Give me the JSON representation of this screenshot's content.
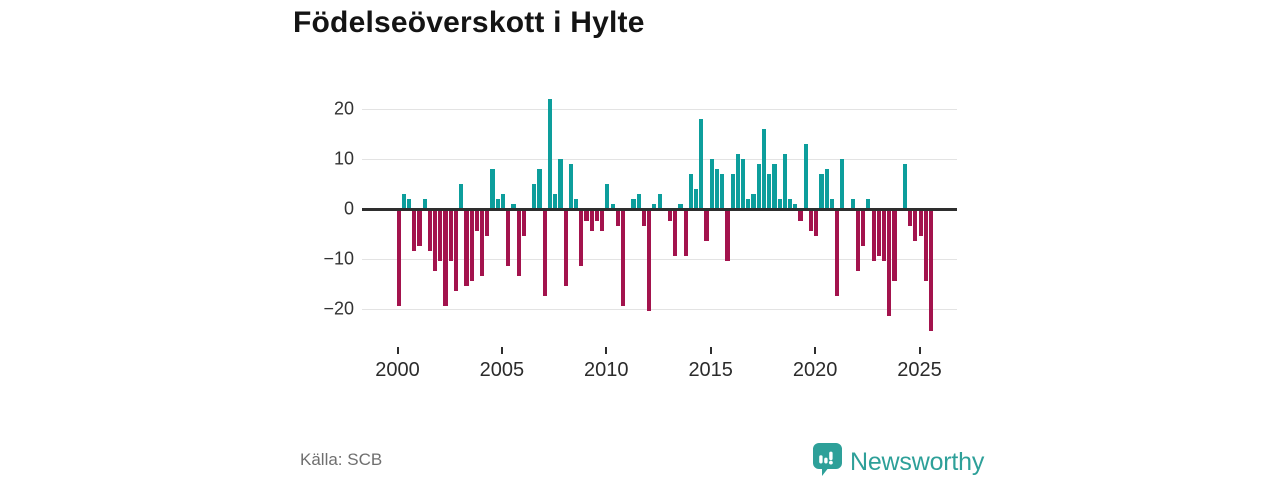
{
  "title": "Födelseöverskott i Hylte",
  "source": "Källa: SCB",
  "brand": {
    "name": "Newsworthy",
    "color": "#2ea099"
  },
  "colors": {
    "positive": "#0d9e9c",
    "negative": "#a3134d",
    "axis": "#2e2e2e",
    "grid": "#e3e3e3"
  },
  "chart_data": {
    "type": "bar",
    "title": "Födelseöverskott i Hylte",
    "xlabel": "",
    "ylabel": "",
    "period": "quarterly",
    "start": "2000 Q1",
    "end": "2025 Q3",
    "ylim": [
      -26,
      24
    ],
    "grid": true,
    "y_ticks": [
      20,
      10,
      0,
      -10,
      -20
    ],
    "y_tick_labels": [
      "20",
      "10",
      "0",
      "−10",
      "−20"
    ],
    "x_ticks": [
      "2000",
      "2005",
      "2010",
      "2015",
      "2020",
      "2025"
    ],
    "series": [
      {
        "name": "Födelseöverskott",
        "values": [
          -19,
          3,
          2,
          -8,
          -7,
          2,
          -8,
          -12,
          -10,
          -19,
          -10,
          -16,
          5,
          -15,
          -14,
          -4,
          -13,
          -5,
          8,
          2,
          3,
          -11,
          1,
          -13,
          -5,
          0,
          5,
          8,
          -17,
          22,
          3,
          10,
          -15,
          9,
          2,
          -11,
          -2,
          -4,
          -2,
          -4,
          5,
          1,
          -3,
          -19,
          0,
          2,
          3,
          -3,
          -20,
          1,
          3,
          0,
          -2,
          -9,
          1,
          -9,
          7,
          4,
          18,
          -6,
          10,
          8,
          7,
          -10,
          7,
          11,
          10,
          2,
          3,
          9,
          16,
          7,
          9,
          2,
          11,
          2,
          1,
          -2,
          13,
          -4,
          -5,
          7,
          8,
          2,
          -17,
          10,
          0,
          2,
          -12,
          -7,
          2,
          -10,
          -9,
          -10,
          -21,
          -14,
          0,
          9,
          -3,
          -6,
          -5,
          -14,
          -24
        ]
      }
    ]
  }
}
